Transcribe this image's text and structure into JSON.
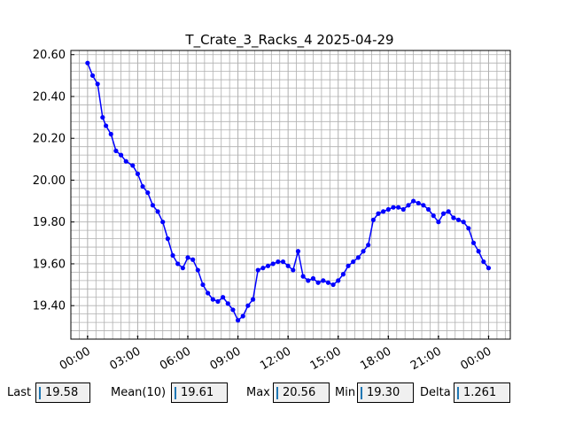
{
  "chart_data": {
    "type": "line",
    "title": "T_Crate_3_Racks_4 2025-04-29",
    "xlabel": "",
    "ylabel": "",
    "x_unit": "hours since 2025-04-29 00:00",
    "xlim": [
      -1.0,
      25.3
    ],
    "ylim": [
      19.24,
      20.62
    ],
    "x_ticks": [
      0,
      3,
      6,
      9,
      12,
      15,
      18,
      21,
      24
    ],
    "x_tick_labels": [
      "00:00",
      "03:00",
      "06:00",
      "09:00",
      "12:00",
      "15:00",
      "18:00",
      "21:00",
      "00:00"
    ],
    "y_ticks": [
      19.4,
      19.6,
      19.8,
      20.0,
      20.2,
      20.4,
      20.6
    ],
    "y_tick_labels": [
      "19.40",
      "19.60",
      "19.80",
      "20.00",
      "20.20",
      "20.40",
      "20.60"
    ],
    "grid": true,
    "marker": "o",
    "color": "#0000ff",
    "series": [
      {
        "x": [
          0.0,
          0.3,
          0.6,
          0.9,
          1.1,
          1.4,
          1.7,
          2.0,
          2.3,
          2.7,
          3.0,
          3.3,
          3.6,
          3.9,
          4.2,
          4.5,
          4.8,
          5.1,
          5.4,
          5.7,
          6.0,
          6.3,
          6.6,
          6.9,
          7.2,
          7.5,
          7.8,
          8.1,
          8.4,
          8.7,
          9.0,
          9.3,
          9.6,
          9.9,
          10.2,
          10.5,
          10.8,
          11.1,
          11.4,
          11.7,
          12.0,
          12.3,
          12.6,
          12.9,
          13.2,
          13.5,
          13.8,
          14.1,
          14.4,
          14.7,
          15.0,
          15.3,
          15.6,
          15.9,
          16.2,
          16.5,
          16.8,
          17.1,
          17.4,
          17.7,
          18.0,
          18.3,
          18.6,
          18.9,
          19.2,
          19.5,
          19.8,
          20.1,
          20.4,
          20.7,
          21.0,
          21.3,
          21.6,
          21.9,
          22.2,
          22.5,
          22.8,
          23.1,
          23.4,
          23.7,
          24.0
        ],
        "y": [
          20.56,
          20.5,
          20.46,
          20.3,
          20.26,
          20.22,
          20.14,
          20.12,
          20.09,
          20.07,
          20.03,
          19.97,
          19.94,
          19.88,
          19.85,
          19.8,
          19.72,
          19.64,
          19.6,
          19.58,
          19.63,
          19.62,
          19.57,
          19.5,
          19.46,
          19.43,
          19.42,
          19.44,
          19.41,
          19.38,
          19.33,
          19.35,
          19.4,
          19.43,
          19.57,
          19.58,
          19.59,
          19.6,
          19.61,
          19.61,
          19.59,
          19.57,
          19.66,
          19.54,
          19.52,
          19.53,
          19.51,
          19.52,
          19.51,
          19.5,
          19.52,
          19.55,
          19.59,
          19.61,
          19.63,
          19.66,
          19.69,
          19.81,
          19.84,
          19.85,
          19.86,
          19.87,
          19.87,
          19.86,
          19.88,
          19.9,
          19.89,
          19.88,
          19.86,
          19.83,
          19.8,
          19.84,
          19.85,
          19.82,
          19.81,
          19.8,
          19.77,
          19.7,
          19.66,
          19.61,
          19.58
        ]
      }
    ]
  },
  "stats": {
    "last_label": "Last",
    "last_value": "19.58",
    "mean_label": "Mean(10)",
    "mean_value": "19.61",
    "max_label": "Max",
    "max_value": "20.56",
    "min_label": "Min",
    "min_value": "19.30",
    "delta_label": "Delta",
    "delta_value": "1.261",
    "accent_color": "#1f77b4"
  }
}
